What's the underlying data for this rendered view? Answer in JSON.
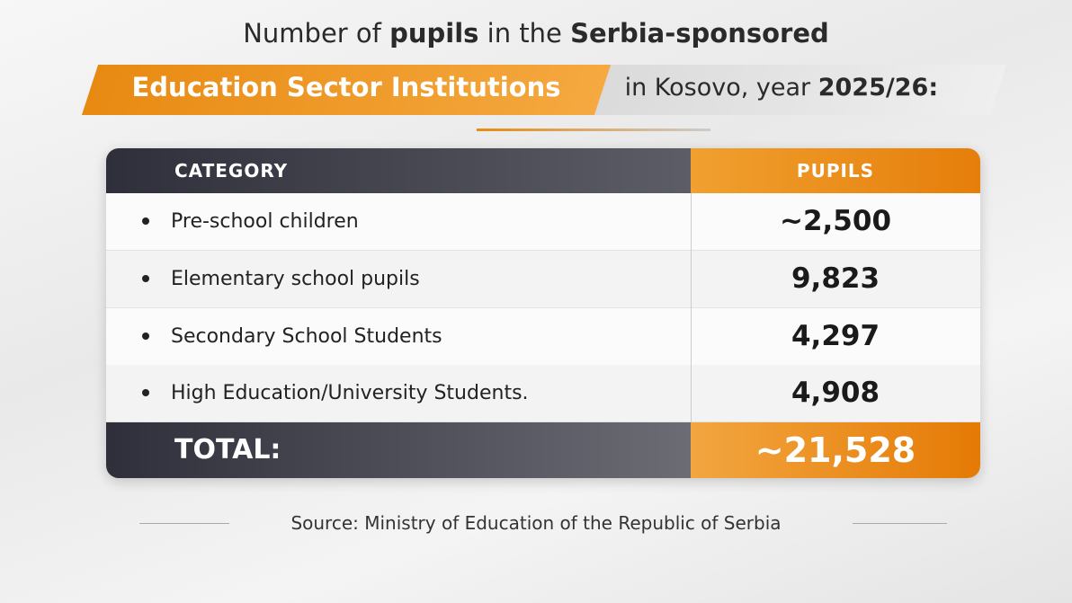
{
  "title": {
    "line1": [
      "Number of ",
      "pupils",
      " in the ",
      "Serbia-sponsored"
    ],
    "highlight": "Education Sector Institutions",
    "line2": [
      " in Kosovo, year ",
      "2025/26:"
    ]
  },
  "table": {
    "header": [
      "CATEGORY",
      "PUPILS"
    ],
    "rows": [
      [
        "Pre-school children",
        "~2,500"
      ],
      [
        "Elementary school pupils",
        "9,823"
      ],
      [
        "Secondary School Students",
        "4,297"
      ],
      [
        "High Education/University Students.",
        "4,908"
      ]
    ],
    "total": [
      "TOTAL:",
      "~21,528"
    ]
  },
  "source": "Source: Ministry of Education of the Republic of Serbia"
}
